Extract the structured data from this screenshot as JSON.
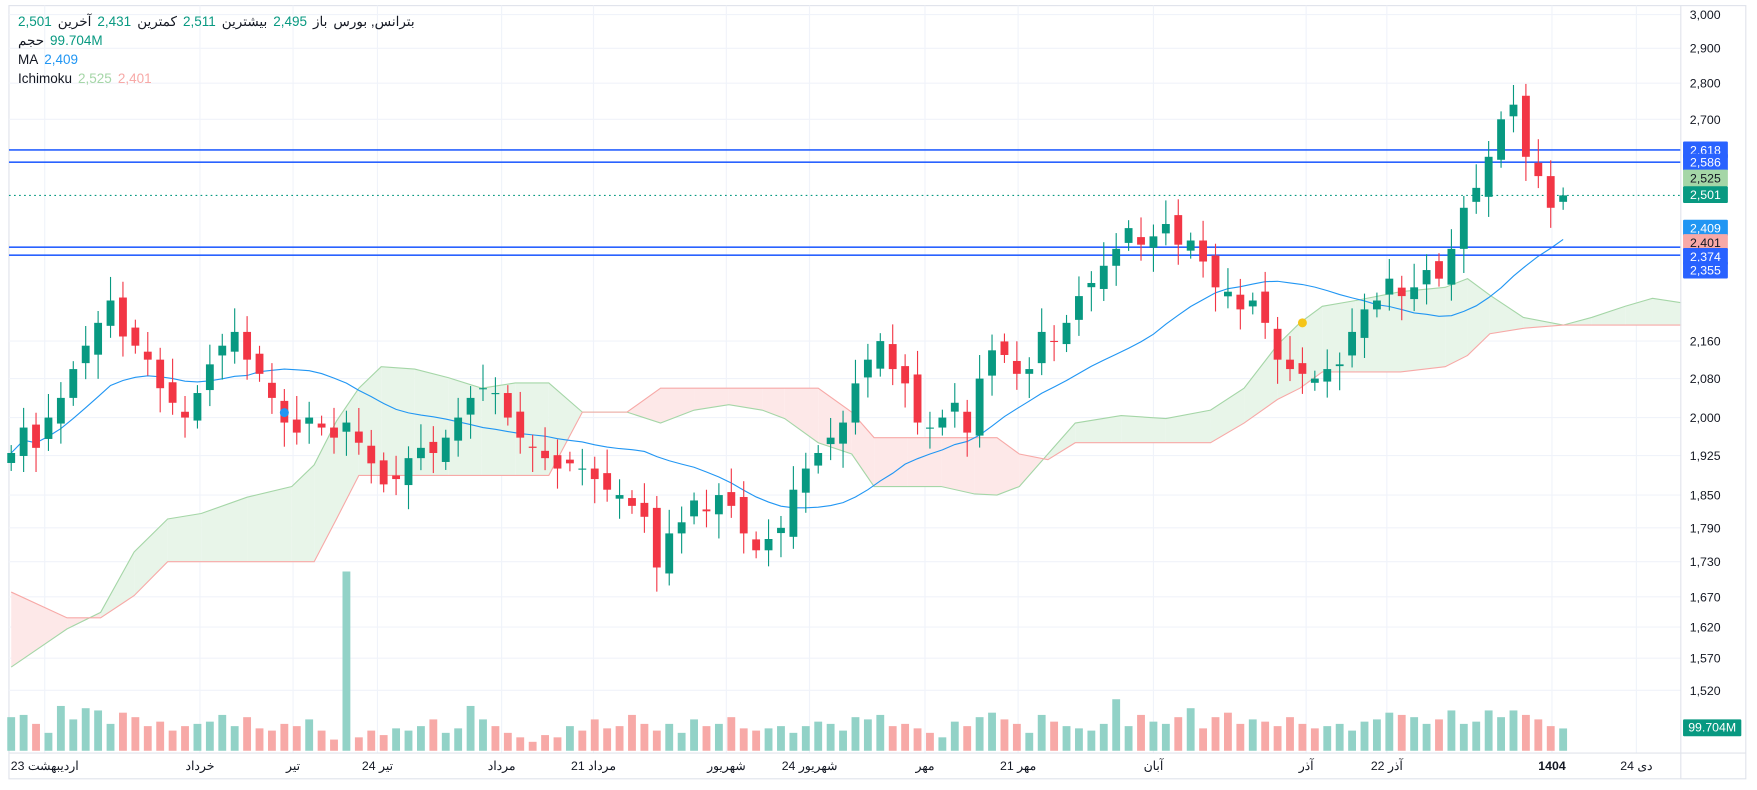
{
  "legend": {
    "symbol": "بترانس, بورس",
    "open_label": "باز",
    "open": "2,495",
    "high_label": "بیشترین",
    "high": "2,511",
    "low_label": "کمترین",
    "low": "2,431",
    "close_label": "آخرین",
    "close": "2,501",
    "volume_label": "حجم",
    "volume": "99.704M",
    "ma_label": "MA",
    "ma": "2,409",
    "ichimoku_label": "Ichimoku",
    "ichimoku_a": "2,525",
    "ichimoku_b": "2,401"
  },
  "colors": {
    "up": "#089981",
    "down": "#f23645",
    "ma": "#2196f3",
    "span_a": "#a5d6a7",
    "span_b": "#f7a9a7",
    "hline": "#2962ff",
    "cloud_up": "#e8f5e9",
    "cloud_down": "#fde8e8"
  },
  "chart_data": {
    "type": "candlestick",
    "scale": "log",
    "ylim": [
      1470,
      3000
    ],
    "y_ticks": [
      3000,
      2900,
      2800,
      2700,
      2160,
      2080,
      2000,
      1925,
      1850,
      1790,
      1730,
      1670,
      1620,
      1570,
      1520
    ],
    "y_tick_labels": [
      "3,000",
      "2,900",
      "2,800",
      "2,700",
      "2,160",
      "2,080",
      "2,000",
      "1,925",
      "1,850",
      "1,790",
      "1,730",
      "1,670",
      "1,620",
      "1,570",
      "1,520"
    ],
    "x_labels": [
      {
        "i": 2.7,
        "label": "23 اردیبهشت"
      },
      {
        "i": 15.2,
        "label": "خرداد"
      },
      {
        "i": 22.7,
        "label": "تیر"
      },
      {
        "i": 29.5,
        "label": "24 تیر"
      },
      {
        "i": 39.5,
        "label": "مرداد"
      },
      {
        "i": 46.9,
        "label": "21 مرداد"
      },
      {
        "i": 57.6,
        "label": "شهریور"
      },
      {
        "i": 64.3,
        "label": "24 شهریور"
      },
      {
        "i": 73.6,
        "label": "مهر"
      },
      {
        "i": 81.1,
        "label": "21 مهر"
      },
      {
        "i": 92,
        "label": "آبان"
      },
      {
        "i": 104.3,
        "label": "آذر"
      },
      {
        "i": 110.8,
        "label": "22 آذر"
      },
      {
        "i": 124.1,
        "label": "1404",
        "bold": true
      },
      {
        "i": 130.9,
        "label": "24 دی"
      }
    ],
    "close": [
      1930,
      1980,
      1940,
      2000,
      2040,
      2100,
      2150,
      2200,
      2250,
      2170,
      2150,
      2120,
      2060,
      2030,
      2000,
      2050,
      2110,
      2150,
      2180,
      2120,
      2090,
      2040,
      1990,
      1970,
      2000,
      1980,
      1960,
      1990,
      1950,
      1910,
      1870,
      1880,
      1920,
      1940,
      1930,
      1960,
      2000,
      2040,
      2060,
      2050,
      2000,
      1960,
      1940,
      1920,
      1900,
      1910,
      1900,
      1880,
      1860,
      1850,
      1830,
      1810,
      1720,
      1780,
      1800,
      1840,
      1820,
      1850,
      1830,
      1780,
      1750,
      1770,
      1790,
      1860,
      1900,
      1930,
      1960,
      1990,
      2070,
      2120,
      2160,
      2100,
      2070,
      1990,
      1980,
      2000,
      2030,
      1970,
      2080,
      2140,
      2130,
      2090,
      2100,
      2180,
      2160,
      2200,
      2260,
      2290,
      2330,
      2370,
      2420,
      2380,
      2400,
      2430,
      2380,
      2390,
      2340,
      2280,
      2270,
      2230,
      2250,
      2200,
      2120,
      2100,
      2090,
      2080,
      2100,
      2110,
      2180,
      2230,
      2250,
      2300,
      2260,
      2280,
      2320,
      2300,
      2370,
      2470,
      2520,
      2600,
      2700,
      2740,
      2600,
      2550,
      2470,
      2501
    ],
    "volume_m": [
      150,
      160,
      120,
      80,
      200,
      140,
      190,
      180,
      120,
      170,
      150,
      110,
      130,
      90,
      110,
      120,
      130,
      160,
      110,
      150,
      100,
      90,
      120,
      110,
      140,
      90,
      50,
      800,
      60,
      90,
      70,
      100,
      90,
      110,
      140,
      80,
      100,
      200,
      140,
      110,
      80,
      60,
      40,
      70,
      60,
      110,
      90,
      140,
      100,
      110,
      160,
      120,
      90,
      120,
      80,
      140,
      110,
      120,
      150,
      100,
      90,
      100,
      110,
      80,
      110,
      130,
      120,
      90,
      150,
      140,
      160,
      110,
      120,
      100,
      80,
      60,
      130,
      110,
      150,
      170,
      140,
      120,
      80,
      160,
      130,
      110,
      100,
      90,
      120,
      230,
      110,
      160,
      130,
      120,
      150,
      190,
      100,
      150,
      170,
      120,
      140,
      130,
      110,
      150,
      120,
      100,
      110,
      120,
      90,
      130,
      140,
      170,
      160,
      150,
      120,
      140,
      180,
      120,
      130,
      180,
      150,
      180,
      160,
      140,
      110,
      99.704
    ],
    "ma_period": 20,
    "ichimoku_cloud": [
      {
        "i": 0,
        "a": 1556,
        "b": 1678
      },
      {
        "i": 4.5,
        "a": 1617,
        "b": 1635
      },
      {
        "i": 7.2,
        "a": 1644,
        "b": 1635
      },
      {
        "i": 9.9,
        "a": 1747,
        "b": 1672
      },
      {
        "i": 12.6,
        "a": 1806,
        "b": 1730
      },
      {
        "i": 15.3,
        "a": 1816,
        "b": 1730
      },
      {
        "i": 19,
        "a": 1846,
        "b": 1730
      },
      {
        "i": 22.6,
        "a": 1866,
        "b": 1730
      },
      {
        "i": 24.4,
        "a": 1907,
        "b": 1730
      },
      {
        "i": 26.2,
        "a": 1993,
        "b": 1806
      },
      {
        "i": 28,
        "a": 2060,
        "b": 1887
      },
      {
        "i": 29.8,
        "a": 2105,
        "b": 1887
      },
      {
        "i": 32.5,
        "a": 2100,
        "b": 1887
      },
      {
        "i": 35.2,
        "a": 2082,
        "b": 1887
      },
      {
        "i": 37.9,
        "a": 2060,
        "b": 1887
      },
      {
        "i": 40.6,
        "a": 2071,
        "b": 1887
      },
      {
        "i": 43.3,
        "a": 2071,
        "b": 1887
      },
      {
        "i": 46,
        "a": 2011,
        "b": 2011
      },
      {
        "i": 49.6,
        "a": 2011,
        "b": 2011
      },
      {
        "i": 52.3,
        "a": 1989,
        "b": 2060
      },
      {
        "i": 55,
        "a": 2015,
        "b": 2060
      },
      {
        "i": 57.8,
        "a": 2026,
        "b": 2060
      },
      {
        "i": 60.5,
        "a": 2015,
        "b": 2060
      },
      {
        "i": 62.3,
        "a": 1998,
        "b": 2060
      },
      {
        "i": 65,
        "a": 1950,
        "b": 2060
      },
      {
        "i": 67.7,
        "a": 1928,
        "b": 2011
      },
      {
        "i": 69.5,
        "a": 1866,
        "b": 1960
      },
      {
        "i": 72.2,
        "a": 1866,
        "b": 1960
      },
      {
        "i": 74.9,
        "a": 1866,
        "b": 1960
      },
      {
        "i": 77.6,
        "a": 1852,
        "b": 1960
      },
      {
        "i": 79.4,
        "a": 1850,
        "b": 1960
      },
      {
        "i": 81.2,
        "a": 1866,
        "b": 1928
      },
      {
        "i": 83.5,
        "a": 1928,
        "b": 1917
      },
      {
        "i": 85.7,
        "a": 1989,
        "b": 1950
      },
      {
        "i": 89.4,
        "a": 2004,
        "b": 1950
      },
      {
        "i": 93,
        "a": 1998,
        "b": 1950
      },
      {
        "i": 96.6,
        "a": 2015,
        "b": 1950
      },
      {
        "i": 99.3,
        "a": 2060,
        "b": 1989
      },
      {
        "i": 102,
        "a": 2152,
        "b": 2037
      },
      {
        "i": 103.8,
        "a": 2200,
        "b": 2060
      },
      {
        "i": 105.6,
        "a": 2237,
        "b": 2094
      },
      {
        "i": 108.3,
        "a": 2250,
        "b": 2094
      },
      {
        "i": 111.9,
        "a": 2270,
        "b": 2094
      },
      {
        "i": 115.5,
        "a": 2280,
        "b": 2105
      },
      {
        "i": 117.3,
        "a": 2300,
        "b": 2129
      },
      {
        "i": 119.1,
        "a": 2262,
        "b": 2176
      },
      {
        "i": 121.8,
        "a": 2212,
        "b": 2188
      },
      {
        "i": 125,
        "a": 2195,
        "b": 2195
      },
      {
        "i": 127.3,
        "a": 2212,
        "b": 2195
      },
      {
        "i": 130,
        "a": 2237,
        "b": 2195
      },
      {
        "i": 132.2,
        "a": 2255,
        "b": 2195
      },
      {
        "i": 134.5,
        "a": 2245,
        "b": 2195
      }
    ],
    "markers": [
      {
        "i": 22,
        "price": 2010,
        "color": "#2196f3"
      },
      {
        "i": 104,
        "price": 2200,
        "color": "#f5c518"
      }
    ],
    "horizontal_lines": [
      2618,
      2586,
      2374,
      2355
    ],
    "last_price_line": 2501,
    "price_badges": [
      {
        "value": "2,618",
        "price": 2618,
        "bg": "#2962ff",
        "fg": "#ffffff"
      },
      {
        "value": "2,586",
        "price": 2586,
        "bg": "#2962ff",
        "fg": "#ffffff"
      },
      {
        "value": "2,525",
        "price": 2545,
        "bg": "#a5d6a7",
        "fg": "#131722"
      },
      {
        "value": "2,501",
        "price": 2503,
        "bg": "#089981",
        "fg": "#ffffff"
      },
      {
        "value": "2,409",
        "price": 2420,
        "bg": "#2196f3",
        "fg": "#ffffff"
      },
      {
        "value": "2,401",
        "price": 2385,
        "bg": "#f7a9a7",
        "fg": "#131722"
      },
      {
        "value": "2,374",
        "price": 2352,
        "bg": "#2962ff",
        "fg": "#ffffff"
      },
      {
        "value": "2,355",
        "price": 2320,
        "bg": "#2962ff",
        "fg": "#ffffff"
      }
    ],
    "volume_badge": "99.704M"
  }
}
